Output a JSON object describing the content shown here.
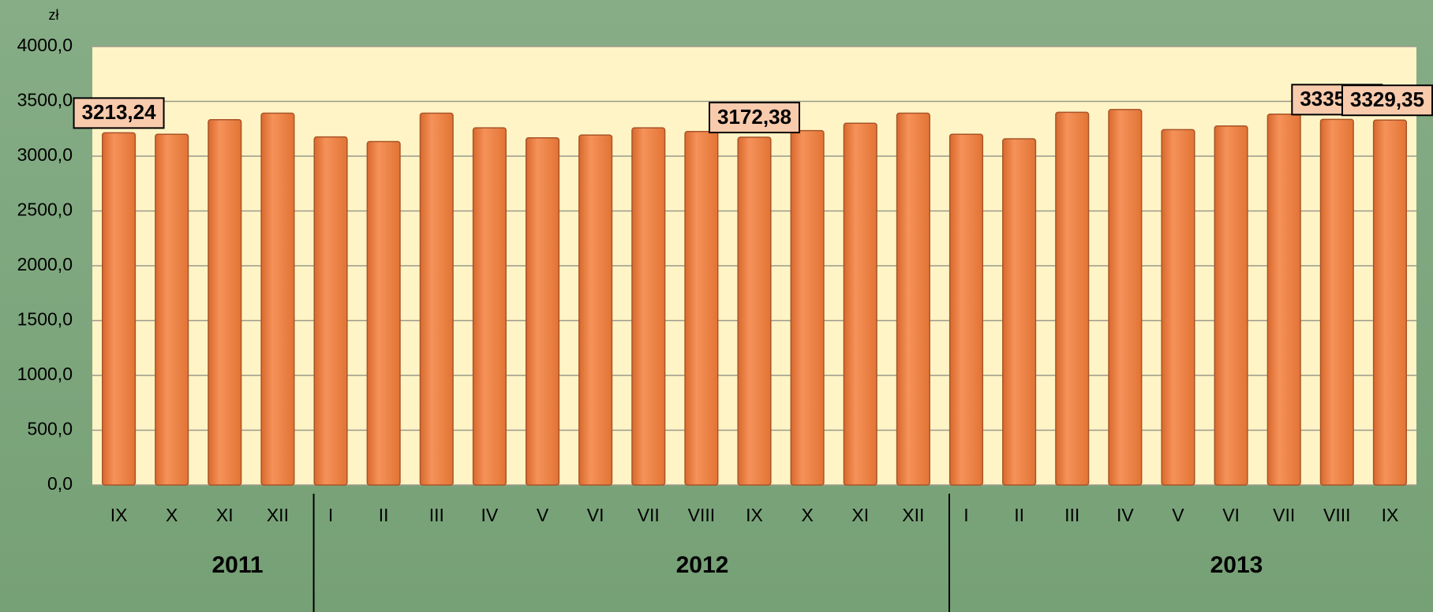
{
  "chart_data": {
    "type": "bar",
    "unit_label": "zł",
    "categories": [
      "IX",
      "X",
      "XI",
      "XII",
      "I",
      "II",
      "III",
      "IV",
      "V",
      "VI",
      "VII",
      "VIII",
      "IX",
      "X",
      "XI",
      "XII",
      "I",
      "II",
      "III",
      "IV",
      "V",
      "VI",
      "VII",
      "VIII",
      "IX"
    ],
    "values": [
      3213.24,
      3200,
      3333,
      3392,
      3175,
      3133,
      3392,
      3258,
      3167,
      3192,
      3258,
      3225,
      3172.38,
      3233,
      3300,
      3392,
      3200,
      3158,
      3400,
      3425,
      3242,
      3275,
      3383,
      3335.81,
      3329.35
    ],
    "value_labels": [
      "3213,24",
      null,
      null,
      null,
      null,
      null,
      null,
      null,
      null,
      null,
      null,
      null,
      "3172,38",
      null,
      null,
      null,
      null,
      null,
      null,
      null,
      null,
      null,
      null,
      "3335,81",
      "3329,35"
    ],
    "years": [
      "2011",
      "2012",
      "2013"
    ],
    "color": "#ef8646",
    "ylim": [
      0,
      4000
    ],
    "yticks": [
      {
        "value": 0,
        "label": "0,0"
      },
      {
        "value": 500,
        "label": "500,0"
      },
      {
        "value": 1000,
        "label": "1000,0"
      },
      {
        "value": 1500,
        "label": "1500,0"
      },
      {
        "value": 2000,
        "label": "2000,0"
      },
      {
        "value": 2500,
        "label": "2500,0"
      },
      {
        "value": 3000,
        "label": "3000,0"
      },
      {
        "value": 3500,
        "label": "3500,0"
      },
      {
        "value": 4000,
        "label": "4000,0"
      }
    ],
    "grid": true
  }
}
